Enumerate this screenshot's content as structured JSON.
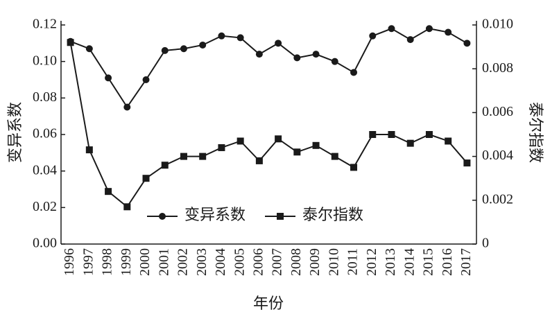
{
  "chart_data": {
    "type": "line",
    "x_label": "年份",
    "y_label": "变异系数",
    "y2_label": "泰尔指数",
    "categories": [
      "1996",
      "1997",
      "1998",
      "1999",
      "2000",
      "2001",
      "2002",
      "2003",
      "2004",
      "2005",
      "2006",
      "2007",
      "2008",
      "2009",
      "2010",
      "2011",
      "2012",
      "2013",
      "2014",
      "2015",
      "2016",
      "2017"
    ],
    "series": [
      {
        "name": "变异系数",
        "color": "#1a1a1a",
        "marker": "circle",
        "axis": "y",
        "values": [
          0.111,
          0.107,
          0.091,
          0.075,
          0.09,
          0.106,
          0.107,
          0.109,
          0.114,
          0.113,
          0.104,
          0.11,
          0.102,
          0.104,
          0.1,
          0.094,
          0.114,
          0.118,
          0.112,
          0.118,
          0.116,
          0.11
        ]
      },
      {
        "name": "泰尔指数",
        "color": "#1a1a1a",
        "marker": "square",
        "axis": "y2",
        "values": [
          0.0092,
          0.0043,
          0.0024,
          0.0017,
          0.003,
          0.0036,
          0.004,
          0.004,
          0.0044,
          0.0047,
          0.0038,
          0.0048,
          0.0042,
          0.0045,
          0.004,
          0.0035,
          0.005,
          0.005,
          0.0046,
          0.005,
          0.0047,
          0.0037
        ]
      }
    ],
    "ylim": [
      0,
      0.12
    ],
    "yticks": [
      {
        "value": 0,
        "label": "0.00"
      },
      0.02,
      0.04,
      0.06,
      0.08,
      {
        "value": 0.1,
        "label": "0.10"
      },
      0.12
    ],
    "y2lim": [
      0,
      0.01
    ],
    "y2ticks": [
      0,
      0.002,
      0.004,
      0.006,
      0.008,
      {
        "value": 0.01,
        "label": "0.010"
      }
    ],
    "legend": "lower-center",
    "grid": false
  }
}
